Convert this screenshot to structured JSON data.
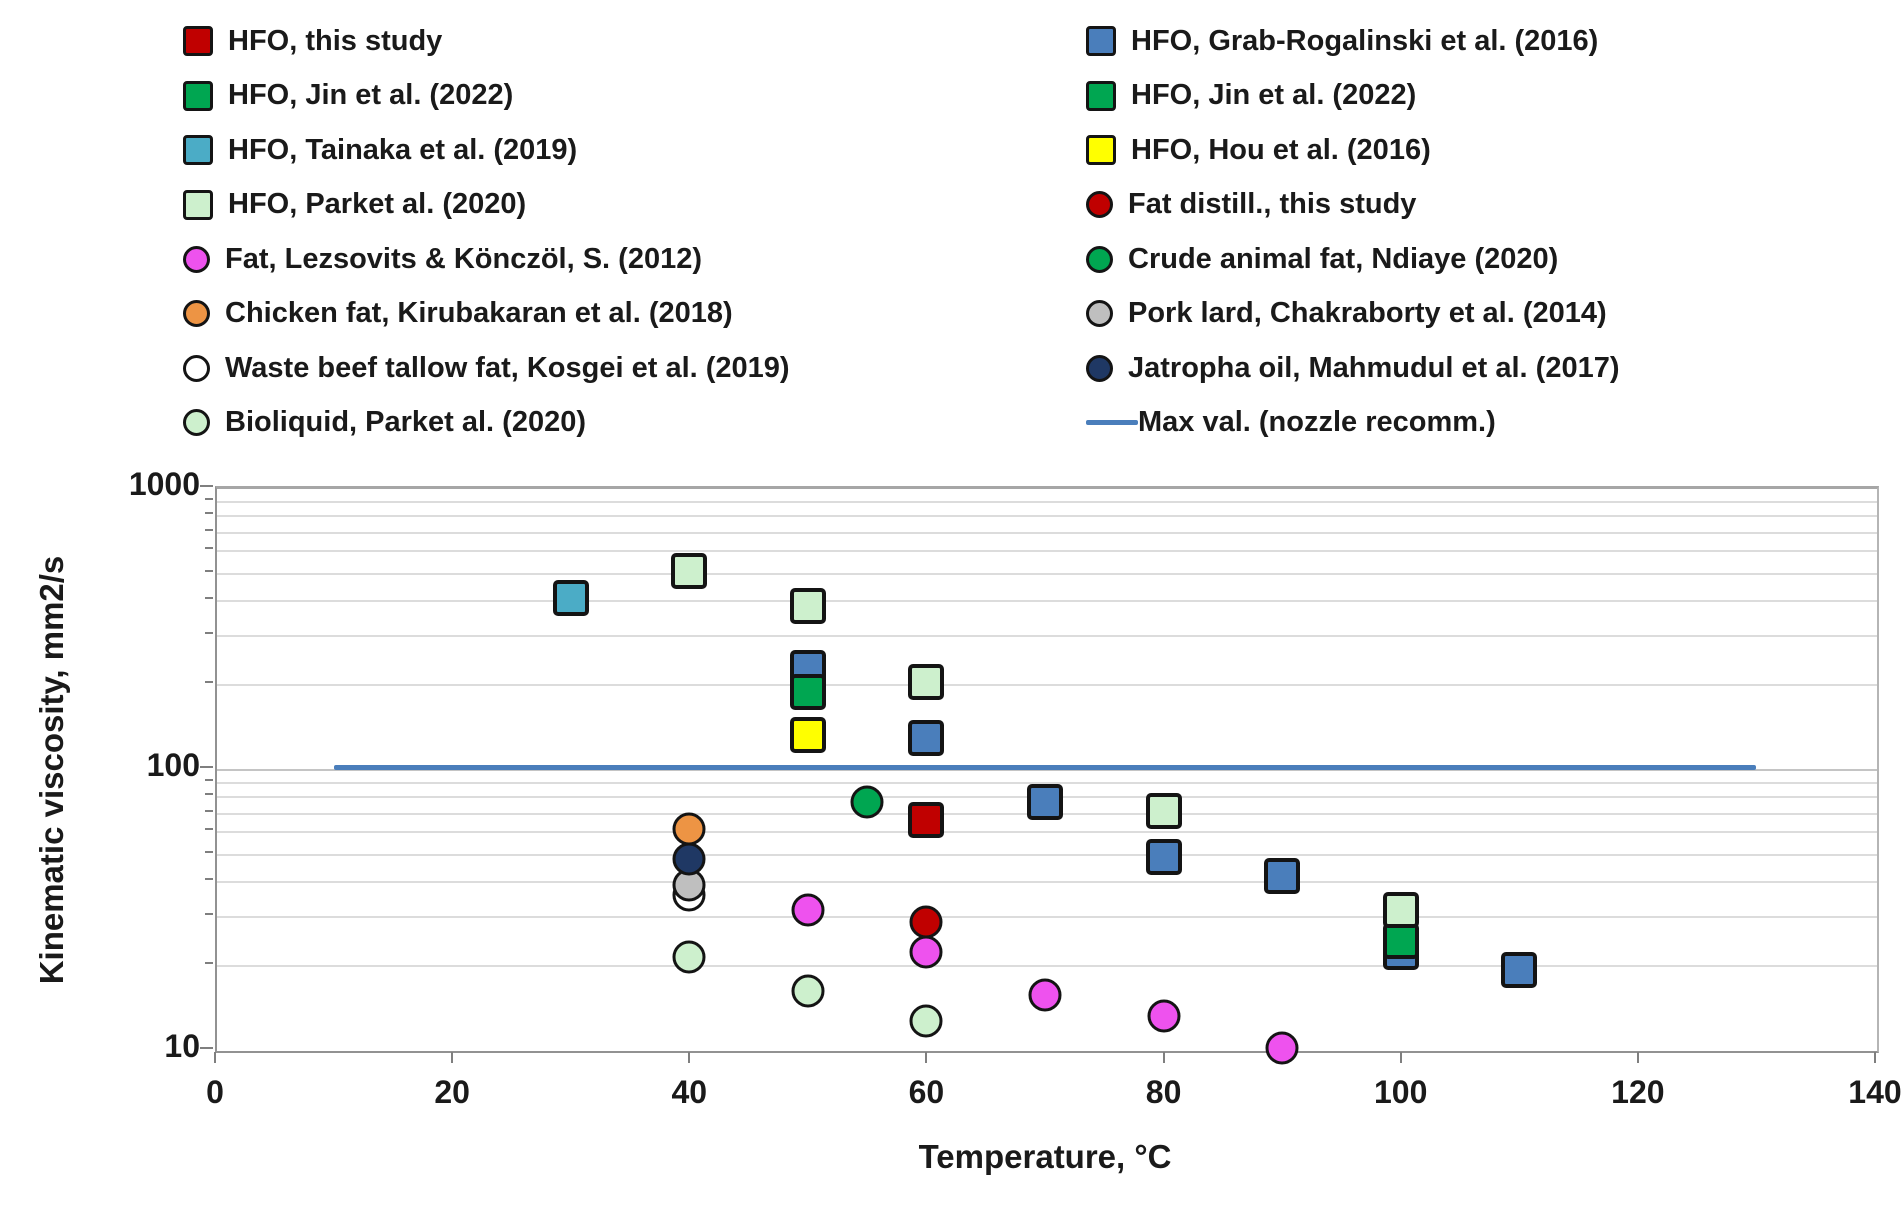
{
  "chart_data": {
    "type": "scatter",
    "title": "",
    "xlabel": "Temperature, °C",
    "ylabel": "Kinematic viscosity, mm2/s",
    "x_ticks": [
      0,
      20,
      40,
      60,
      80,
      100,
      120,
      140
    ],
    "y_ticks": [
      1000,
      100,
      10
    ],
    "xlim": [
      0,
      140
    ],
    "ylim": [
      10,
      1000
    ],
    "y_scale": "log10",
    "grid": "horizontal-log-minor",
    "legend_position": "top-two-columns",
    "series": [
      {
        "name": "HFO, this study",
        "marker": "square",
        "color": "#c00000",
        "points": [
          [
            60,
            65
          ]
        ]
      },
      {
        "name": "HFO, Jin et al. (2022)",
        "marker": "square",
        "color": "#00a651",
        "points": [
          [
            50,
            185
          ],
          [
            100,
            24
          ]
        ]
      },
      {
        "name": "HFO, Tainaka et al. (2019)",
        "marker": "square",
        "color": "#4bacc6",
        "points": [
          [
            30,
            400
          ]
        ]
      },
      {
        "name": "HFO, Parket al.  (2020)",
        "marker": "square",
        "color": "#cdf0cd",
        "points": [
          [
            40,
            500
          ],
          [
            50,
            375
          ],
          [
            60,
            200
          ],
          [
            80,
            70
          ],
          [
            100,
            31
          ]
        ]
      },
      {
        "name": "HFO, Grab-Rogalinski et al.  (2016)",
        "marker": "square",
        "color": "#4a7ebb",
        "points": [
          [
            50,
            225
          ],
          [
            60,
            127
          ],
          [
            70,
            75
          ],
          [
            80,
            48
          ],
          [
            90,
            41
          ],
          [
            100,
            22
          ],
          [
            110,
            19
          ]
        ]
      },
      {
        "name": "HFO, Hou et al. (2016)",
        "marker": "square",
        "color": "#ffff00",
        "points": [
          [
            50,
            130
          ]
        ]
      },
      {
        "name": "Fat, Lezsovits & Könczöl, S. (2012)",
        "marker": "circle",
        "color": "#ee52ee",
        "points": [
          [
            50,
            31
          ],
          [
            60,
            22
          ],
          [
            70,
            15.5
          ],
          [
            80,
            13
          ],
          [
            90,
            10
          ]
        ]
      },
      {
        "name": "Chicken fat, Kirubakaran et al. (2018)",
        "marker": "circle",
        "color": "#ed9444",
        "points": [
          [
            40,
            60
          ]
        ]
      },
      {
        "name": "Waste beef tallow fat, Kosgei et al.  (2019)",
        "marker": "circle",
        "color": "#ffffff",
        "points": [
          [
            40,
            35
          ]
        ]
      },
      {
        "name": "Bioliquid, Parket al.  (2020)",
        "marker": "circle",
        "color": "#cdf0cd",
        "points": [
          [
            40,
            21
          ],
          [
            50,
            16
          ],
          [
            60,
            12.5
          ]
        ]
      },
      {
        "name": "Fat distill., this study",
        "marker": "circle",
        "color": "#c00000",
        "points": [
          [
            60,
            28
          ]
        ]
      },
      {
        "name": "Crude animal fat, Ndiaye (2020)",
        "marker": "circle",
        "color": "#00a651",
        "points": [
          [
            55,
            75
          ]
        ]
      },
      {
        "name": "Pork lard, Chakraborty et al. (2014)",
        "marker": "circle",
        "color": "#bfbfbf",
        "points": [
          [
            40,
            38
          ]
        ]
      },
      {
        "name": "Jatropha oil, Mahmudul et al. (2017)",
        "marker": "circle",
        "color": "#1f3864",
        "points": [
          [
            40,
            47
          ]
        ]
      }
    ],
    "draw_order": [
      "Waste beef tallow fat, Kosgei et al.  (2019)",
      "Pork lard, Chakraborty et al. (2014)",
      "Jatropha oil, Mahmudul et al. (2017)",
      "Chicken fat, Kirubakaran et al. (2018)",
      "HFO, Grab-Rogalinski et al.  (2016)",
      "HFO, Jin et al. (2022)",
      "HFO, Parket al.  (2020)",
      "HFO, Tainaka et al. (2019)",
      "HFO, Hou et al. (2016)",
      "HFO, this study",
      "Crude animal fat, Ndiaye (2020)",
      "Fat distill., this study",
      "Fat, Lezsovits & Könczöl, S. (2012)",
      "Bioliquid, Parket al.  (2020)"
    ],
    "ref_line": {
      "name": "Max val. (nozzle recomm.)",
      "value": 100,
      "x_start": 10,
      "x_end": 130,
      "color": "#4a7ebb"
    }
  },
  "legend": {
    "left": [
      {
        "label": "HFO, this study",
        "marker": "square",
        "color": "#c00000"
      },
      {
        "label": "HFO, Jin et al. (2022)",
        "marker": "square",
        "color": "#00a651"
      },
      {
        "label": "HFO, Tainaka et al. (2019)",
        "marker": "square",
        "color": "#4bacc6"
      },
      {
        "label": "HFO, Parket al.  (2020)",
        "marker": "square",
        "color": "#cdf0cd"
      },
      {
        "label": "Fat, Lezsovits & Könczöl, S. (2012)",
        "marker": "circle",
        "color": "#ee52ee"
      },
      {
        "label": "Chicken fat, Kirubakaran et al. (2018)",
        "marker": "circle",
        "color": "#ed9444"
      },
      {
        "label": "Waste beef tallow fat, Kosgei et al.  (2019)",
        "marker": "circle",
        "color": "#ffffff"
      },
      {
        "label": "Bioliquid, Parket al.  (2020)",
        "marker": "circle",
        "color": "#cdf0cd"
      }
    ],
    "right": [
      {
        "label": "HFO, Grab-Rogalinski et al.  (2016)",
        "marker": "square",
        "color": "#4a7ebb"
      },
      {
        "label": "HFO, Jin et al. (2022)",
        "marker": "square",
        "color": "#00a651"
      },
      {
        "label": "HFO, Hou et al. (2016)",
        "marker": "square",
        "color": "#ffff00"
      },
      {
        "label": "Fat distill., this study",
        "marker": "circle",
        "color": "#c00000"
      },
      {
        "label": "Crude animal fat, Ndiaye (2020)",
        "marker": "circle",
        "color": "#00a651"
      },
      {
        "label": "Pork lard, Chakraborty et al. (2014)",
        "marker": "circle",
        "color": "#bfbfbf"
      },
      {
        "label": "Jatropha oil, Mahmudul et al. (2017)",
        "marker": "circle",
        "color": "#1f3864"
      },
      {
        "label": "Max val. (nozzle recomm.)",
        "marker": "line",
        "color": "#4a7ebb"
      }
    ]
  }
}
